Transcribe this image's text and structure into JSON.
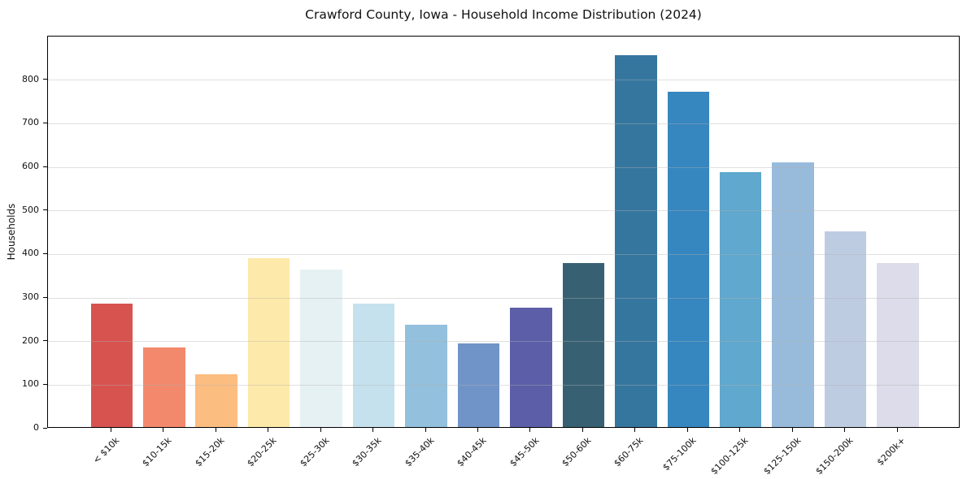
{
  "chart_data": {
    "type": "bar",
    "title": "Crawford County, Iowa - Household Income Distribution (2024)",
    "xlabel": "",
    "ylabel": "Households",
    "categories": [
      "< $10k",
      "$10-15k",
      "$15-20k",
      "$20-25k",
      "$25-30k",
      "$30-35k",
      "$35-40k",
      "$40-45k",
      "$45-50k",
      "$50-60k",
      "$60-75k",
      "$75-100k",
      "$100-125k",
      "$125-150k",
      "$150-200k",
      "$200k+"
    ],
    "values": [
      283,
      183,
      122,
      387,
      361,
      283,
      235,
      192,
      274,
      376,
      853,
      769,
      586,
      608,
      449,
      376
    ],
    "bar_colors": [
      "#d7534f",
      "#f2896c",
      "#fcbd80",
      "#fde9a9",
      "#e6f1f4",
      "#c5e1ee",
      "#93c0dd",
      "#7094c8",
      "#5c5ea8",
      "#376173",
      "#35769e",
      "#3686bf",
      "#60a8cd",
      "#98bbdb",
      "#becce2",
      "#dcdcea"
    ],
    "ylim": [
      0,
      900
    ],
    "yticks": [
      0,
      100,
      200,
      300,
      400,
      500,
      600,
      700,
      800
    ],
    "grid": "horizontal-only",
    "gridline_color": "#e6e6e6",
    "spine_color": "#000000",
    "background_color": "#ffffff",
    "legend": "none",
    "x_tick_rotation_deg": 45
  }
}
